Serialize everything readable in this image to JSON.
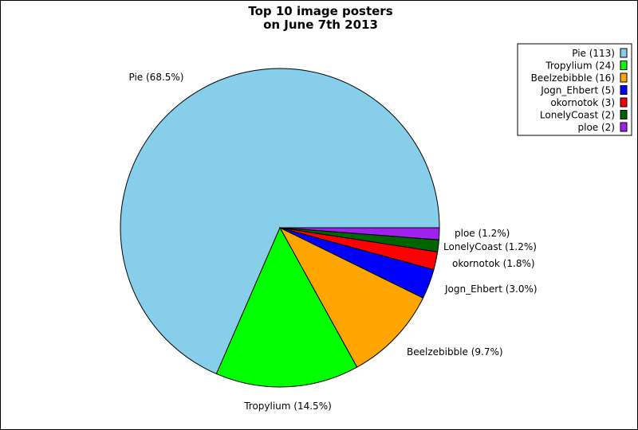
{
  "chart_data": {
    "type": "pie",
    "title": [
      "Top 10 image posters",
      "on June 7th 2013"
    ],
    "legend_position": "top-right",
    "slices": [
      {
        "name": "Pie",
        "count": 113,
        "percent": 68.5,
        "color": "#87CEEB",
        "label": "Pie (68.5%)",
        "legend": "Pie (113)"
      },
      {
        "name": "Tropylium",
        "count": 24,
        "percent": 14.5,
        "color": "#00FF00",
        "label": "Tropylium (14.5%)",
        "legend": "Tropylium (24)"
      },
      {
        "name": "Beelzebibble",
        "count": 16,
        "percent": 9.7,
        "color": "#FFA500",
        "label": "Beelzebibble (9.7%)",
        "legend": "Beelzebibble (16)"
      },
      {
        "name": "Jogn_Ehbert",
        "count": 5,
        "percent": 3.0,
        "color": "#0000FF",
        "label": "Jogn_Ehbert (3.0%)",
        "legend": "Jogn_Ehbert (5)"
      },
      {
        "name": "okornotok",
        "count": 3,
        "percent": 1.8,
        "color": "#FF0000",
        "label": "okornotok (1.8%)",
        "legend": "okornotok (3)"
      },
      {
        "name": "LonelyCoast",
        "count": 2,
        "percent": 1.2,
        "color": "#006400",
        "label": "LonelyCoast (1.2%)",
        "legend": "LonelyCoast (2)"
      },
      {
        "name": "ploe",
        "count": 2,
        "percent": 1.2,
        "color": "#A020F0",
        "label": "ploe (1.2%)",
        "legend": "ploe (2)"
      }
    ]
  }
}
